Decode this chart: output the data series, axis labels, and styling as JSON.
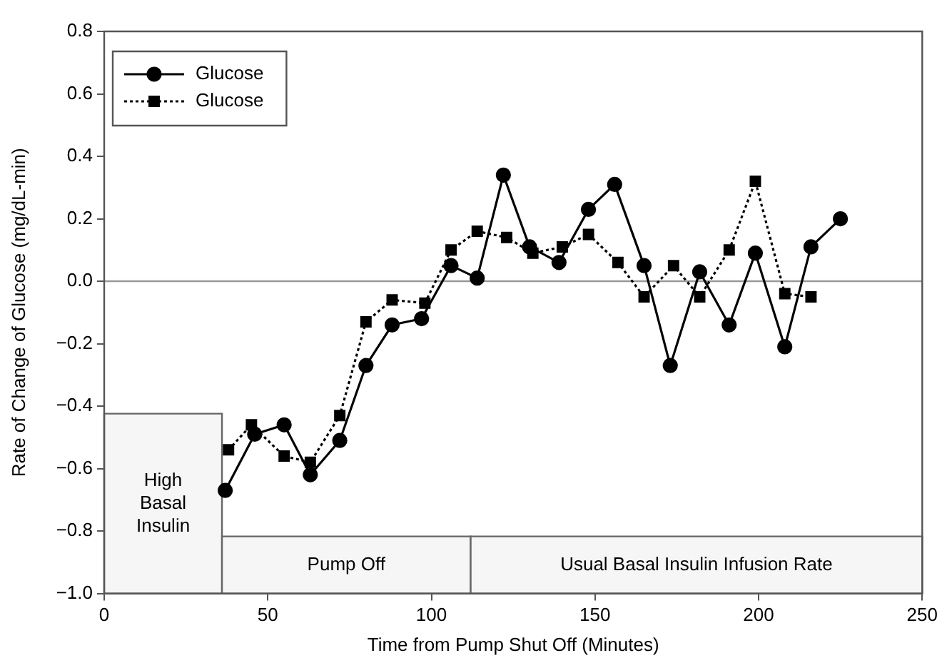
{
  "chart_data": {
    "type": "line",
    "xlabel": "Time from Pump Shut Off (Minutes)",
    "ylabel": "Rate of Change of Glucose (mg/dL-min)",
    "xlim": [
      0,
      250
    ],
    "xticks": [
      0,
      50,
      100,
      150,
      200,
      250
    ],
    "ylim": [
      -1.0,
      0.8
    ],
    "yticks": [
      {
        "value": -1.0,
        "label": "−1.0"
      },
      {
        "value": -0.8,
        "label": "−0.8"
      },
      {
        "value": -0.6,
        "label": "−0.6"
      },
      {
        "value": -0.4,
        "label": "−0.4"
      },
      {
        "value": -0.2,
        "label": "−0.2"
      },
      {
        "value": 0,
        "label": "0.0"
      },
      0.2,
      0.4,
      0.6,
      0.8
    ],
    "grid": false,
    "legend": "top left",
    "series": [
      {
        "name": "Glucose",
        "color": "#000000",
        "marker": "circle",
        "line_style": "solid",
        "x": [
          37,
          46,
          55,
          63,
          72,
          80,
          88,
          97,
          106,
          114,
          122,
          130,
          139,
          148,
          156,
          165,
          173,
          182,
          191,
          199,
          208,
          216,
          225
        ],
        "values": [
          -0.67,
          -0.49,
          -0.46,
          -0.62,
          -0.51,
          -0.27,
          -0.14,
          -0.12,
          0.05,
          0.01,
          0.34,
          0.11,
          0.06,
          0.23,
          0.31,
          0.05,
          -0.27,
          0.03,
          -0.14,
          0.09,
          -0.21,
          0.11,
          0.2
        ]
      },
      {
        "name": "Glucose",
        "color": "#000000",
        "marker": "square",
        "line_style": "dotted",
        "x": [
          38,
          45,
          55,
          63,
          72,
          80,
          88,
          98,
          106,
          114,
          123,
          131,
          140,
          148,
          157,
          165,
          174,
          182,
          191,
          199,
          208,
          216
        ],
        "values": [
          -0.54,
          -0.46,
          -0.56,
          -0.58,
          -0.43,
          -0.13,
          -0.06,
          -0.07,
          0.1,
          0.16,
          0.14,
          0.09,
          0.11,
          0.15,
          0.06,
          -0.05,
          0.05,
          -0.05,
          0.1,
          0.32,
          -0.04,
          -0.05
        ]
      }
    ],
    "ref_lines": [
      {
        "axis": "y",
        "value": 0,
        "color": "#999999"
      }
    ],
    "bands": [
      {
        "axis": "x",
        "from": 0,
        "to": 36,
        "label": "High Basal Insulin",
        "color": "#f6f6f6"
      },
      {
        "axis": "x",
        "from": 36,
        "to": 112,
        "label": "Pump Off",
        "color": "#f6f6f6"
      },
      {
        "axis": "x",
        "from": 112,
        "to": 250,
        "label": "Usual Basal Insulin Infusion Rate",
        "color": "#f6f6f6"
      }
    ]
  }
}
